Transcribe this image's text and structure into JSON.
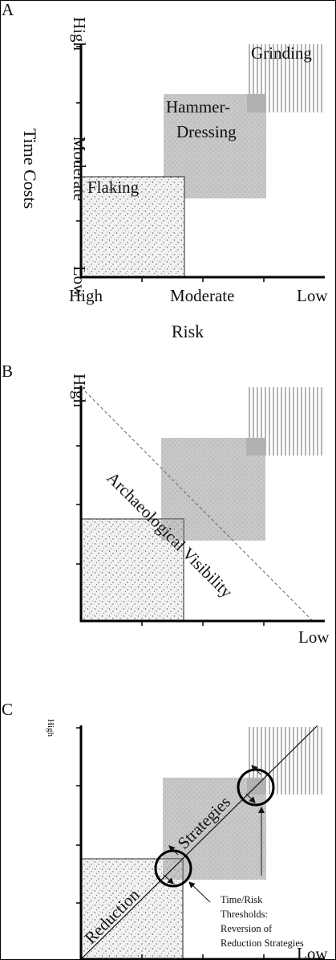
{
  "panels": [
    {
      "letter": "A",
      "y_axis_label": "Time Costs",
      "x_axis_label": "Risk",
      "y_ticks": [
        "High",
        "Moderate",
        "Low"
      ],
      "x_ticks": [
        "High",
        "Moderate",
        "Low"
      ],
      "regions": [
        "Flaking",
        "Hammer-Dressing",
        "Grinding"
      ],
      "hammer_dressing_lines": [
        "Hammer-",
        "Dressing"
      ]
    },
    {
      "letter": "B",
      "y_tick_top": "High",
      "x_tick_right": "Low",
      "diagonal_label": "Archaeological Visibility"
    },
    {
      "letter": "C",
      "y_tick_top": "High",
      "x_tick_right": "Low",
      "diagonal_label_1": "Reduction",
      "diagonal_label_2": "Strategies",
      "annotation_lines": [
        "Time/Risk",
        "Thresholds:",
        "Reversion of",
        "Reduction Strategies"
      ]
    }
  ],
  "colors": {
    "axis": "#000000",
    "flaking_fill": "#efefef",
    "hammer_fill": "#c9c9c9",
    "grinding_fill": "#dcdcdc",
    "stroke": "#111111"
  }
}
